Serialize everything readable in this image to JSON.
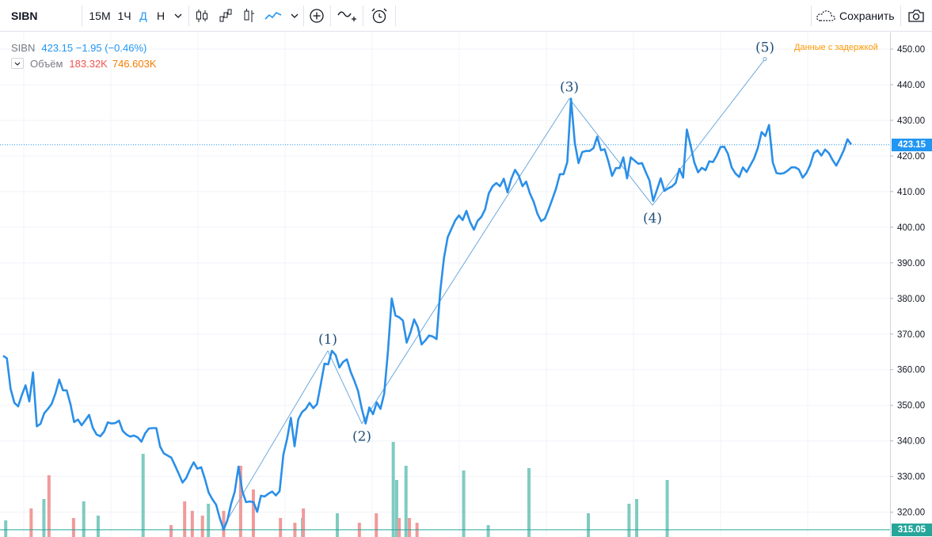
{
  "toolbar": {
    "symbol": "SIBN",
    "intervals": [
      "15M",
      "1Ч",
      "Д",
      "Н"
    ],
    "active_interval": "Д",
    "save_label": "Сохранить"
  },
  "legend": {
    "symbol": "SIBN",
    "price": "423.15",
    "change": "−1.95 (−0.46%)",
    "volume_label": "Объём",
    "volume_1": "183.32K",
    "volume_2": "746.603K"
  },
  "delay_note": "Данные с задержкой",
  "price_axis": {
    "ticks": [
      "450.00",
      "440.00",
      "430.00",
      "420.00",
      "410.00",
      "400.00",
      "390.00",
      "380.00",
      "370.00",
      "360.00",
      "350.00",
      "340.00",
      "330.00",
      "320.00"
    ],
    "last_price_label": "423.15",
    "low_label": "315.05"
  },
  "colors": {
    "line": "#2a8fe8",
    "wave": "#6fa8dc",
    "volume_up": "#7fcbc1",
    "volume_down": "#f19a9a",
    "last_price": "#2196f3",
    "low_line": "#26a69a"
  },
  "chart_data": {
    "type": "line",
    "symbol": "SIBN",
    "ylim": [
      313,
      453
    ],
    "last_price": 423.15,
    "low_level": 315.05,
    "prices": [
      363.9,
      363.2,
      354.6,
      350.7,
      349.7,
      352.9,
      355.6,
      351.1,
      359.2,
      344.1,
      344.8,
      347.8,
      349.0,
      350.4,
      353.4,
      357.2,
      354.2,
      354.2,
      350.4,
      345.3,
      346.0,
      344.4,
      345.8,
      347.3,
      343.7,
      341.8,
      341.3,
      342.6,
      345.2,
      344.9,
      345.0,
      345.7,
      342.8,
      341.8,
      341.2,
      341.5,
      341.0,
      339.8,
      342.1,
      343.5,
      343.6,
      343.6,
      338.4,
      336.5,
      335.9,
      335.3,
      333.1,
      330.8,
      328.3,
      329.6,
      332.0,
      334.0,
      332.2,
      332.6,
      329.3,
      325.5,
      323.6,
      322.1,
      318.3,
      315.1,
      317.7,
      322.3,
      325.8,
      332.8,
      325.9,
      322.8,
      323.0,
      322.8,
      320.1,
      324.6,
      324.4,
      325.2,
      325.8,
      324.7,
      325.9,
      336.2,
      340.6,
      346.5,
      338.5,
      346.1,
      348.1,
      349.0,
      350.7,
      349.2,
      350.3,
      355.8,
      361.7,
      361.5,
      365.3,
      364.1,
      360.6,
      362.2,
      362.9,
      359.4,
      356.9,
      354.0,
      349.0,
      344.9,
      349.4,
      347.5,
      350.8,
      349.0,
      353.3,
      365.3,
      380.0,
      375.2,
      374.7,
      373.8,
      367.6,
      370.4,
      374.1,
      371.9,
      367.1,
      368.2,
      369.6,
      369.3,
      368.6,
      382.1,
      391.4,
      397.2,
      399.6,
      401.9,
      403.3,
      402.0,
      404.6,
      401.4,
      399.3,
      401.8,
      402.9,
      405.0,
      409.5,
      411.5,
      412.4,
      411.5,
      413.6,
      409.8,
      413.6,
      416.1,
      414.5,
      411.5,
      412.8,
      409.5,
      407.1,
      403.8,
      401.7,
      402.4,
      405.0,
      407.9,
      410.9,
      414.9,
      414.9,
      418.3,
      436.1,
      423.7,
      418.0,
      421.1,
      421.4,
      421.4,
      422.2,
      425.4,
      421.6,
      421.9,
      418.5,
      414.4,
      416.6,
      416.6,
      419.6,
      413.7,
      419.6,
      418.7,
      417.8,
      418.0,
      415.5,
      413.1,
      407.4,
      410.5,
      413.7,
      410.2,
      410.9,
      411.4,
      412.4,
      416.4,
      413.9,
      427.4,
      423.0,
      418.2,
      415.4,
      416.7,
      416.0,
      418.5,
      418.3,
      420.1,
      422.5,
      422.6,
      420.6,
      416.8,
      415.1,
      414.1,
      416.8,
      415.5,
      417.4,
      419.3,
      422.2,
      426.7,
      425.6,
      428.7,
      418.2,
      415.2,
      415.0,
      415.2,
      415.9,
      416.8,
      416.8,
      416.2,
      413.9,
      415.2,
      417.4,
      420.8,
      421.6,
      420.1,
      421.8,
      420.8,
      418.9,
      417.3,
      419.3,
      421.6,
      424.7,
      423.2
    ],
    "volume_up": [
      [
        0.3,
        7
      ],
      [
        4.8,
        16
      ],
      [
        9.5,
        15
      ],
      [
        11.2,
        9
      ],
      [
        16.5,
        35
      ],
      [
        24.2,
        14
      ],
      [
        35.3,
        8
      ],
      [
        39.4,
        10
      ],
      [
        46.0,
        40
      ],
      [
        46.4,
        24
      ],
      [
        47.5,
        30
      ],
      [
        54.3,
        28
      ],
      [
        57.2,
        5
      ],
      [
        62.0,
        29
      ],
      [
        69.0,
        10
      ],
      [
        73.8,
        14
      ],
      [
        74.7,
        16
      ],
      [
        78.3,
        24
      ]
    ],
    "volume_down": [
      [
        3.3,
        12
      ],
      [
        5.4,
        26
      ],
      [
        8.3,
        8
      ],
      [
        19.8,
        5
      ],
      [
        21.4,
        15
      ],
      [
        22.3,
        11
      ],
      [
        23.5,
        9
      ],
      [
        26.0,
        11
      ],
      [
        28.0,
        30
      ],
      [
        29.5,
        20
      ],
      [
        32.7,
        8
      ],
      [
        34.4,
        6
      ],
      [
        35.4,
        12
      ],
      [
        42.0,
        6
      ],
      [
        44.0,
        10
      ],
      [
        46.7,
        8
      ],
      [
        47.9,
        8
      ],
      [
        48.8,
        6
      ]
    ],
    "wave_labels": [
      "(1)",
      "(2)",
      "(3)",
      "(4)",
      "(5)"
    ],
    "wave_points": [
      [
        279.9,
        315.1
      ],
      [
        414.0,
        365.3
      ],
      [
        457.0,
        344.9
      ],
      [
        719.0,
        436.1
      ],
      [
        824.0,
        406.2
      ],
      [
        966.0,
        447.2
      ]
    ]
  }
}
